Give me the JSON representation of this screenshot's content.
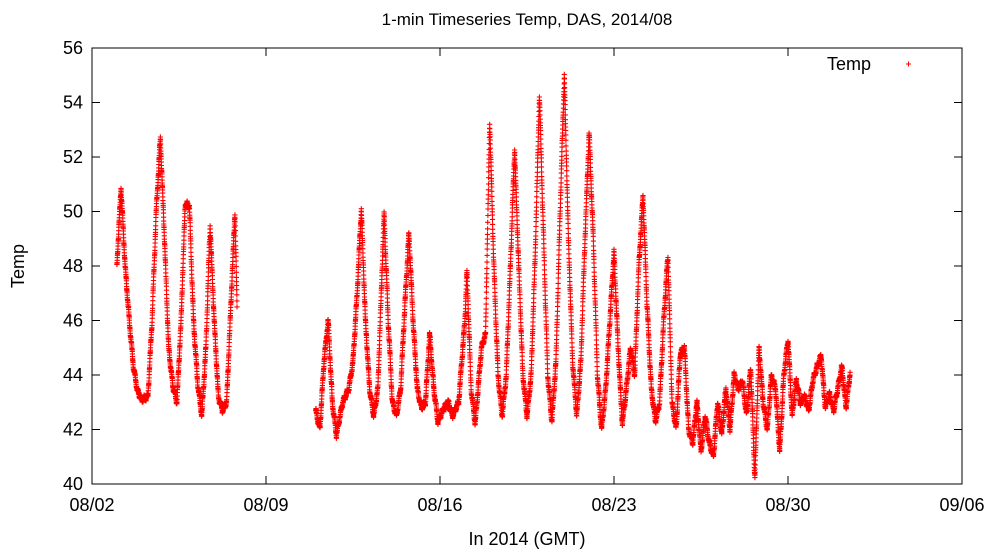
{
  "chart_data": {
    "type": "scatter",
    "title": "1-min Timeseries Temp, DAS, 2014/08",
    "xlabel": "In 2014 (GMT)",
    "ylabel": "Temp",
    "xlim": [
      "2014-08-02",
      "2014-09-06"
    ],
    "ylim": [
      40,
      56
    ],
    "x_ticks": [
      "08/02",
      "08/09",
      "08/16",
      "08/23",
      "08/30",
      "09/06"
    ],
    "y_ticks": [
      40,
      42,
      44,
      46,
      48,
      50,
      52,
      54,
      56
    ],
    "grid": false,
    "legend": "top-right",
    "series": [
      {
        "name": "Temp",
        "color": "#ff0000",
        "marker": "plus",
        "points": [
          [
            "08/03 00:00",
            48.0
          ],
          [
            "08/03 04:00",
            50.9
          ],
          [
            "08/03 08:00",
            48.0
          ],
          [
            "08/03 12:00",
            46.0
          ],
          [
            "08/03 16:00",
            44.3
          ],
          [
            "08/03 20:00",
            43.4
          ],
          [
            "08/04 00:00",
            43.1
          ],
          [
            "08/04 06:00",
            43.2
          ],
          [
            "08/04 10:00",
            46.0
          ],
          [
            "08/04 14:00",
            50.0
          ],
          [
            "08/04 18:00",
            52.7
          ],
          [
            "08/04 22:00",
            49.0
          ],
          [
            "08/05 02:00",
            45.0
          ],
          [
            "08/05 06:00",
            43.6
          ],
          [
            "08/05 10:00",
            43.0
          ],
          [
            "08/05 14:00",
            46.0
          ],
          [
            "08/05 18:00",
            50.3
          ],
          [
            "08/05 22:00",
            50.2
          ],
          [
            "08/06 02:00",
            46.0
          ],
          [
            "08/06 06:00",
            43.7
          ],
          [
            "08/06 10:00",
            42.5
          ],
          [
            "08/06 14:00",
            45.0
          ],
          [
            "08/06 18:00",
            49.5
          ],
          [
            "08/06 22:00",
            46.0
          ],
          [
            "08/07 02:00",
            43.2
          ],
          [
            "08/07 06:00",
            42.7
          ],
          [
            "08/07 10:00",
            43.0
          ],
          [
            "08/07 14:00",
            46.5
          ],
          [
            "08/07 18:00",
            50.0
          ],
          [
            "08/07 20:00",
            46.5
          ],
          [
            "08/11 00:00",
            42.7
          ],
          [
            "08/11 04:00",
            42.0
          ],
          [
            "08/11 08:00",
            44.5
          ],
          [
            "08/11 12:00",
            46.0
          ],
          [
            "08/11 16:00",
            43.0
          ],
          [
            "08/11 20:00",
            41.8
          ],
          [
            "08/12 02:00",
            43.0
          ],
          [
            "08/12 08:00",
            43.5
          ],
          [
            "08/12 12:00",
            44.5
          ],
          [
            "08/12 16:00",
            47.0
          ],
          [
            "08/12 20:00",
            50.1
          ],
          [
            "08/13 00:00",
            46.0
          ],
          [
            "08/13 04:00",
            43.5
          ],
          [
            "08/13 08:00",
            42.5
          ],
          [
            "08/13 12:00",
            43.5
          ],
          [
            "08/13 18:00",
            49.9
          ],
          [
            "08/13 22:00",
            46.0
          ],
          [
            "08/14 02:00",
            43.0
          ],
          [
            "08/14 06:00",
            42.5
          ],
          [
            "08/14 10:00",
            43.5
          ],
          [
            "08/14 14:00",
            46.5
          ],
          [
            "08/14 18:00",
            49.2
          ],
          [
            "08/14 22:00",
            46.0
          ],
          [
            "08/15 02:00",
            43.5
          ],
          [
            "08/15 06:00",
            42.8
          ],
          [
            "08/15 10:00",
            43.0
          ],
          [
            "08/15 14:00",
            45.5
          ],
          [
            "08/15 18:00",
            43.5
          ],
          [
            "08/15 22:00",
            42.3
          ],
          [
            "08/16 04:00",
            42.8
          ],
          [
            "08/16 08:00",
            43.0
          ],
          [
            "08/16 12:00",
            42.5
          ],
          [
            "08/16 18:00",
            43.0
          ],
          [
            "08/17 00:00",
            46.0
          ],
          [
            "08/17 02:00",
            47.8
          ],
          [
            "08/17 06:00",
            43.5
          ],
          [
            "08/17 10:00",
            42.2
          ],
          [
            "08/17 16:00",
            45.0
          ],
          [
            "08/17 20:00",
            45.5
          ],
          [
            "08/18 00:00",
            53.3
          ],
          [
            "08/18 04:00",
            48.0
          ],
          [
            "08/18 08:00",
            44.0
          ],
          [
            "08/18 12:00",
            42.5
          ],
          [
            "08/18 16:00",
            44.0
          ],
          [
            "08/18 20:00",
            48.0
          ],
          [
            "08/19 00:00",
            52.3
          ],
          [
            "08/19 04:00",
            48.0
          ],
          [
            "08/19 08:00",
            44.0
          ],
          [
            "08/19 12:00",
            42.5
          ],
          [
            "08/19 16:00",
            44.0
          ],
          [
            "08/19 20:00",
            48.5
          ],
          [
            "08/20 00:00",
            54.3
          ],
          [
            "08/20 04:00",
            49.0
          ],
          [
            "08/20 08:00",
            44.0
          ],
          [
            "08/20 12:00",
            42.3
          ],
          [
            "08/20 16:00",
            44.5
          ],
          [
            "08/20 20:00",
            50.0
          ],
          [
            "08/21 00:00",
            55.0
          ],
          [
            "08/21 04:00",
            49.0
          ],
          [
            "08/21 08:00",
            44.5
          ],
          [
            "08/21 12:00",
            42.5
          ],
          [
            "08/21 16:00",
            44.5
          ],
          [
            "08/21 20:00",
            49.0
          ],
          [
            "08/22 00:00",
            52.9
          ],
          [
            "08/22 04:00",
            49.0
          ],
          [
            "08/22 08:00",
            44.0
          ],
          [
            "08/22 12:00",
            42.0
          ],
          [
            "08/22 16:00",
            43.5
          ],
          [
            "08/22 20:00",
            46.0
          ],
          [
            "08/23 00:00",
            48.5
          ],
          [
            "08/23 04:00",
            45.0
          ],
          [
            "08/23 08:00",
            42.2
          ],
          [
            "08/23 12:00",
            43.5
          ],
          [
            "08/23 16:00",
            45.0
          ],
          [
            "08/23 20:00",
            44.0
          ],
          [
            "08/24 00:00",
            48.0
          ],
          [
            "08/24 04:00",
            50.6
          ],
          [
            "08/24 08:00",
            46.5
          ],
          [
            "08/24 12:00",
            43.5
          ],
          [
            "08/24 16:00",
            42.3
          ],
          [
            "08/24 20:00",
            43.0
          ],
          [
            "08/25 00:00",
            46.0
          ],
          [
            "08/25 04:00",
            48.4
          ],
          [
            "08/25 08:00",
            43.0
          ],
          [
            "08/25 12:00",
            42.0
          ],
          [
            "08/25 16:00",
            44.8
          ],
          [
            "08/25 20:00",
            45.0
          ],
          [
            "08/26 00:00",
            42.0
          ],
          [
            "08/26 04:00",
            41.5
          ],
          [
            "08/26 08:00",
            43.0
          ],
          [
            "08/26 12:00",
            41.2
          ],
          [
            "08/26 16:00",
            42.5
          ],
          [
            "08/26 20:00",
            41.5
          ],
          [
            "08/27 00:00",
            41.0
          ],
          [
            "08/27 04:00",
            43.0
          ],
          [
            "08/27 08:00",
            41.8
          ],
          [
            "08/27 12:00",
            43.5
          ],
          [
            "08/27 16:00",
            42.0
          ],
          [
            "08/27 20:00",
            44.0
          ],
          [
            "08/28 00:00",
            43.5
          ],
          [
            "08/28 04:00",
            43.8
          ],
          [
            "08/28 08:00",
            42.5
          ],
          [
            "08/28 12:00",
            44.3
          ],
          [
            "08/28 16:00",
            40.2
          ],
          [
            "08/28 20:00",
            45.0
          ],
          [
            "08/29 00:00",
            43.0
          ],
          [
            "08/29 04:00",
            42.0
          ],
          [
            "08/29 08:00",
            44.0
          ],
          [
            "08/29 12:00",
            43.5
          ],
          [
            "08/29 16:00",
            41.2
          ],
          [
            "08/29 20:00",
            44.0
          ],
          [
            "08/30 00:00",
            45.3
          ],
          [
            "08/30 04:00",
            42.5
          ],
          [
            "08/30 08:00",
            43.8
          ],
          [
            "08/30 12:00",
            43.0
          ],
          [
            "08/30 16:00",
            43.2
          ],
          [
            "08/30 20:00",
            42.7
          ],
          [
            "08/31 00:00",
            43.8
          ],
          [
            "08/31 04:00",
            44.3
          ],
          [
            "08/31 08:00",
            44.7
          ],
          [
            "08/31 12:00",
            42.8
          ],
          [
            "08/31 16:00",
            43.3
          ],
          [
            "08/31 20:00",
            42.7
          ],
          [
            "09/01 00:00",
            43.5
          ],
          [
            "09/01 04:00",
            44.3
          ],
          [
            "09/01 08:00",
            42.8
          ],
          [
            "09/01 12:00",
            44.1
          ]
        ]
      }
    ]
  }
}
